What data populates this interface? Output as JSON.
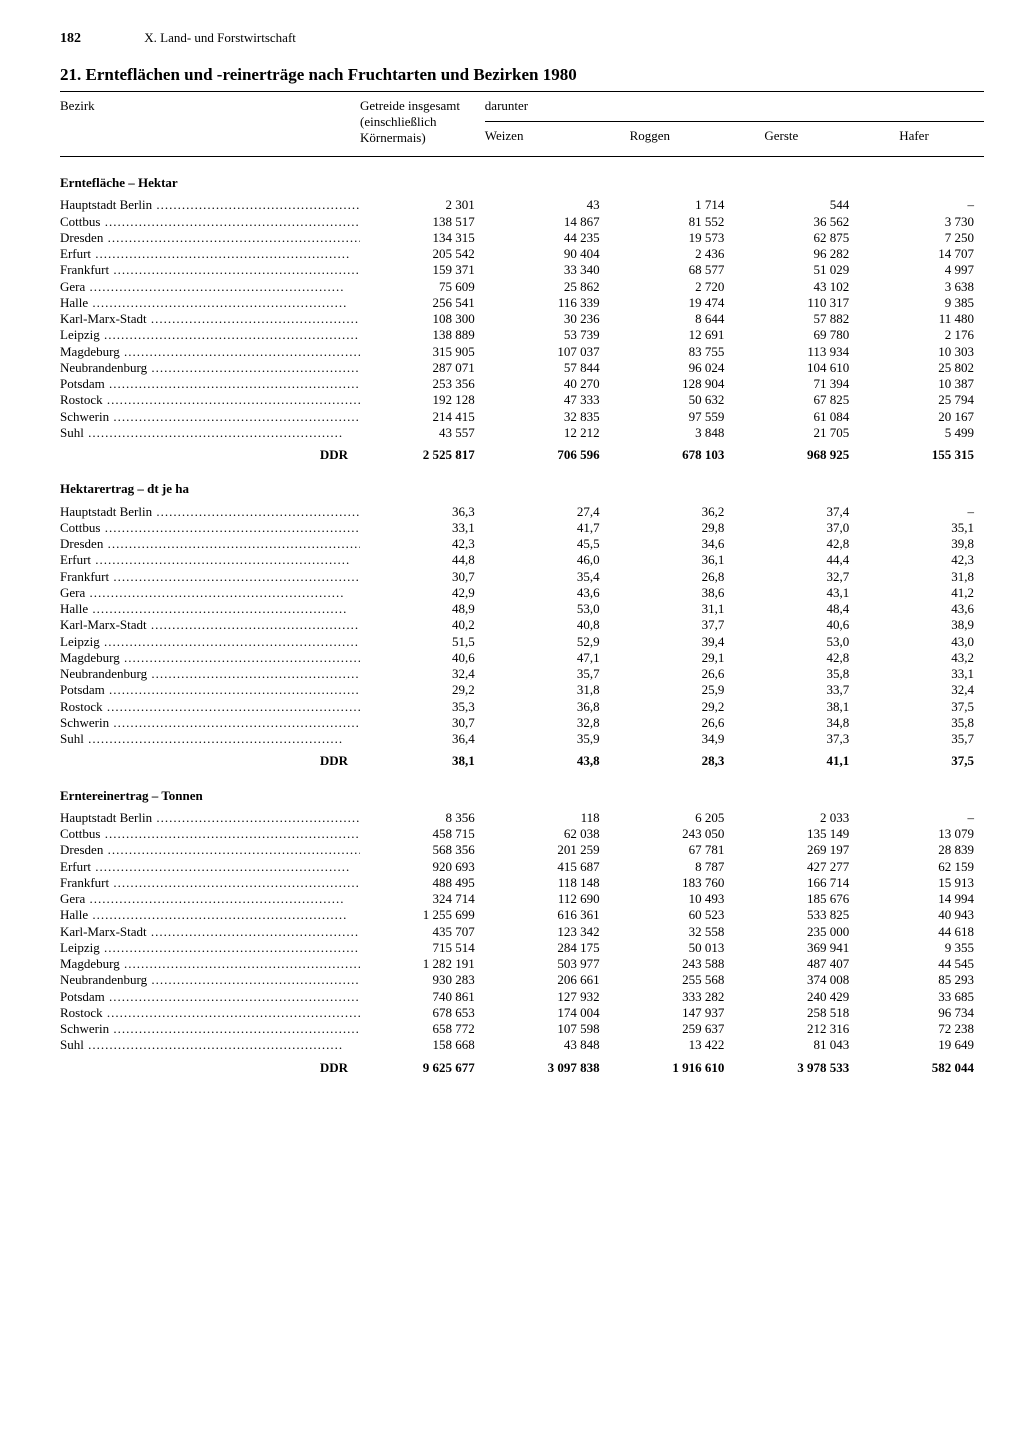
{
  "page_number": "182",
  "chapter": "X. Land- und Forstwirtschaft",
  "title": "21. Ernteflächen und -reinerträge nach Fruchtarten und Bezirken 1980",
  "header": {
    "bezirk": "Bezirk",
    "getreide": "Getreide insgesamt",
    "getreide_sub": "(einschließlich Körnermais)",
    "darunter": "darunter",
    "cols": [
      "Weizen",
      "Roggen",
      "Gerste",
      "Hafer"
    ]
  },
  "total_label": "DDR",
  "regions": [
    "Hauptstadt Berlin",
    "Cottbus",
    "Dresden",
    "Erfurt",
    "Frankfurt",
    "Gera",
    "Halle",
    "Karl-Marx-Stadt",
    "Leipzig",
    "Magdeburg",
    "Neubrandenburg",
    "Potsdam",
    "Rostock",
    "Schwerin",
    "Suhl"
  ],
  "sections": [
    {
      "heading": "Erntefläche – Hektar",
      "rows": [
        [
          "2 301",
          "43",
          "1 714",
          "544",
          "–"
        ],
        [
          "138 517",
          "14 867",
          "81 552",
          "36 562",
          "3 730"
        ],
        [
          "134 315",
          "44 235",
          "19 573",
          "62 875",
          "7 250"
        ],
        [
          "205 542",
          "90 404",
          "2 436",
          "96 282",
          "14 707"
        ],
        [
          "159 371",
          "33 340",
          "68 577",
          "51 029",
          "4 997"
        ],
        [
          "75 609",
          "25 862",
          "2 720",
          "43 102",
          "3 638"
        ],
        [
          "256 541",
          "116 339",
          "19 474",
          "110 317",
          "9 385"
        ],
        [
          "108 300",
          "30 236",
          "8 644",
          "57 882",
          "11 480"
        ],
        [
          "138 889",
          "53 739",
          "12 691",
          "69 780",
          "2 176"
        ],
        [
          "315 905",
          "107 037",
          "83 755",
          "113 934",
          "10 303"
        ],
        [
          "287 071",
          "57 844",
          "96 024",
          "104 610",
          "25 802"
        ],
        [
          "253 356",
          "40 270",
          "128 904",
          "71 394",
          "10 387"
        ],
        [
          "192 128",
          "47 333",
          "50 632",
          "67 825",
          "25 794"
        ],
        [
          "214 415",
          "32 835",
          "97 559",
          "61 084",
          "20 167"
        ],
        [
          "43 557",
          "12 212",
          "3 848",
          "21 705",
          "5 499"
        ]
      ],
      "total": [
        "2 525 817",
        "706 596",
        "678 103",
        "968 925",
        "155 315"
      ]
    },
    {
      "heading": "Hektarertrag – dt je ha",
      "rows": [
        [
          "36,3",
          "27,4",
          "36,2",
          "37,4",
          "–"
        ],
        [
          "33,1",
          "41,7",
          "29,8",
          "37,0",
          "35,1"
        ],
        [
          "42,3",
          "45,5",
          "34,6",
          "42,8",
          "39,8"
        ],
        [
          "44,8",
          "46,0",
          "36,1",
          "44,4",
          "42,3"
        ],
        [
          "30,7",
          "35,4",
          "26,8",
          "32,7",
          "31,8"
        ],
        [
          "42,9",
          "43,6",
          "38,6",
          "43,1",
          "41,2"
        ],
        [
          "48,9",
          "53,0",
          "31,1",
          "48,4",
          "43,6"
        ],
        [
          "40,2",
          "40,8",
          "37,7",
          "40,6",
          "38,9"
        ],
        [
          "51,5",
          "52,9",
          "39,4",
          "53,0",
          "43,0"
        ],
        [
          "40,6",
          "47,1",
          "29,1",
          "42,8",
          "43,2"
        ],
        [
          "32,4",
          "35,7",
          "26,6",
          "35,8",
          "33,1"
        ],
        [
          "29,2",
          "31,8",
          "25,9",
          "33,7",
          "32,4"
        ],
        [
          "35,3",
          "36,8",
          "29,2",
          "38,1",
          "37,5"
        ],
        [
          "30,7",
          "32,8",
          "26,6",
          "34,8",
          "35,8"
        ],
        [
          "36,4",
          "35,9",
          "34,9",
          "37,3",
          "35,7"
        ]
      ],
      "total": [
        "38,1",
        "43,8",
        "28,3",
        "41,1",
        "37,5"
      ]
    },
    {
      "heading": "Erntereinertrag – Tonnen",
      "rows": [
        [
          "8 356",
          "118",
          "6 205",
          "2 033",
          "–"
        ],
        [
          "458 715",
          "62 038",
          "243 050",
          "135 149",
          "13 079"
        ],
        [
          "568 356",
          "201 259",
          "67 781",
          "269 197",
          "28 839"
        ],
        [
          "920 693",
          "415 687",
          "8 787",
          "427 277",
          "62 159"
        ],
        [
          "488 495",
          "118 148",
          "183 760",
          "166 714",
          "15 913"
        ],
        [
          "324 714",
          "112 690",
          "10 493",
          "185 676",
          "14 994"
        ],
        [
          "1 255 699",
          "616 361",
          "60 523",
          "533 825",
          "40 943"
        ],
        [
          "435 707",
          "123 342",
          "32 558",
          "235 000",
          "44 618"
        ],
        [
          "715 514",
          "284 175",
          "50 013",
          "369 941",
          "9 355"
        ],
        [
          "1 282 191",
          "503 977",
          "243 588",
          "487 407",
          "44 545"
        ],
        [
          "930 283",
          "206 661",
          "255 568",
          "374 008",
          "85 293"
        ],
        [
          "740 861",
          "127 932",
          "333 282",
          "240 429",
          "33 685"
        ],
        [
          "678 653",
          "174 004",
          "147 937",
          "258 518",
          "96 734"
        ],
        [
          "658 772",
          "107 598",
          "259 637",
          "212 316",
          "72 238"
        ],
        [
          "158 668",
          "43 848",
          "13 422",
          "81 043",
          "19 649"
        ]
      ],
      "total": [
        "9 625 677",
        "3 097 838",
        "1 916 610",
        "3 978 533",
        "582 044"
      ]
    }
  ]
}
